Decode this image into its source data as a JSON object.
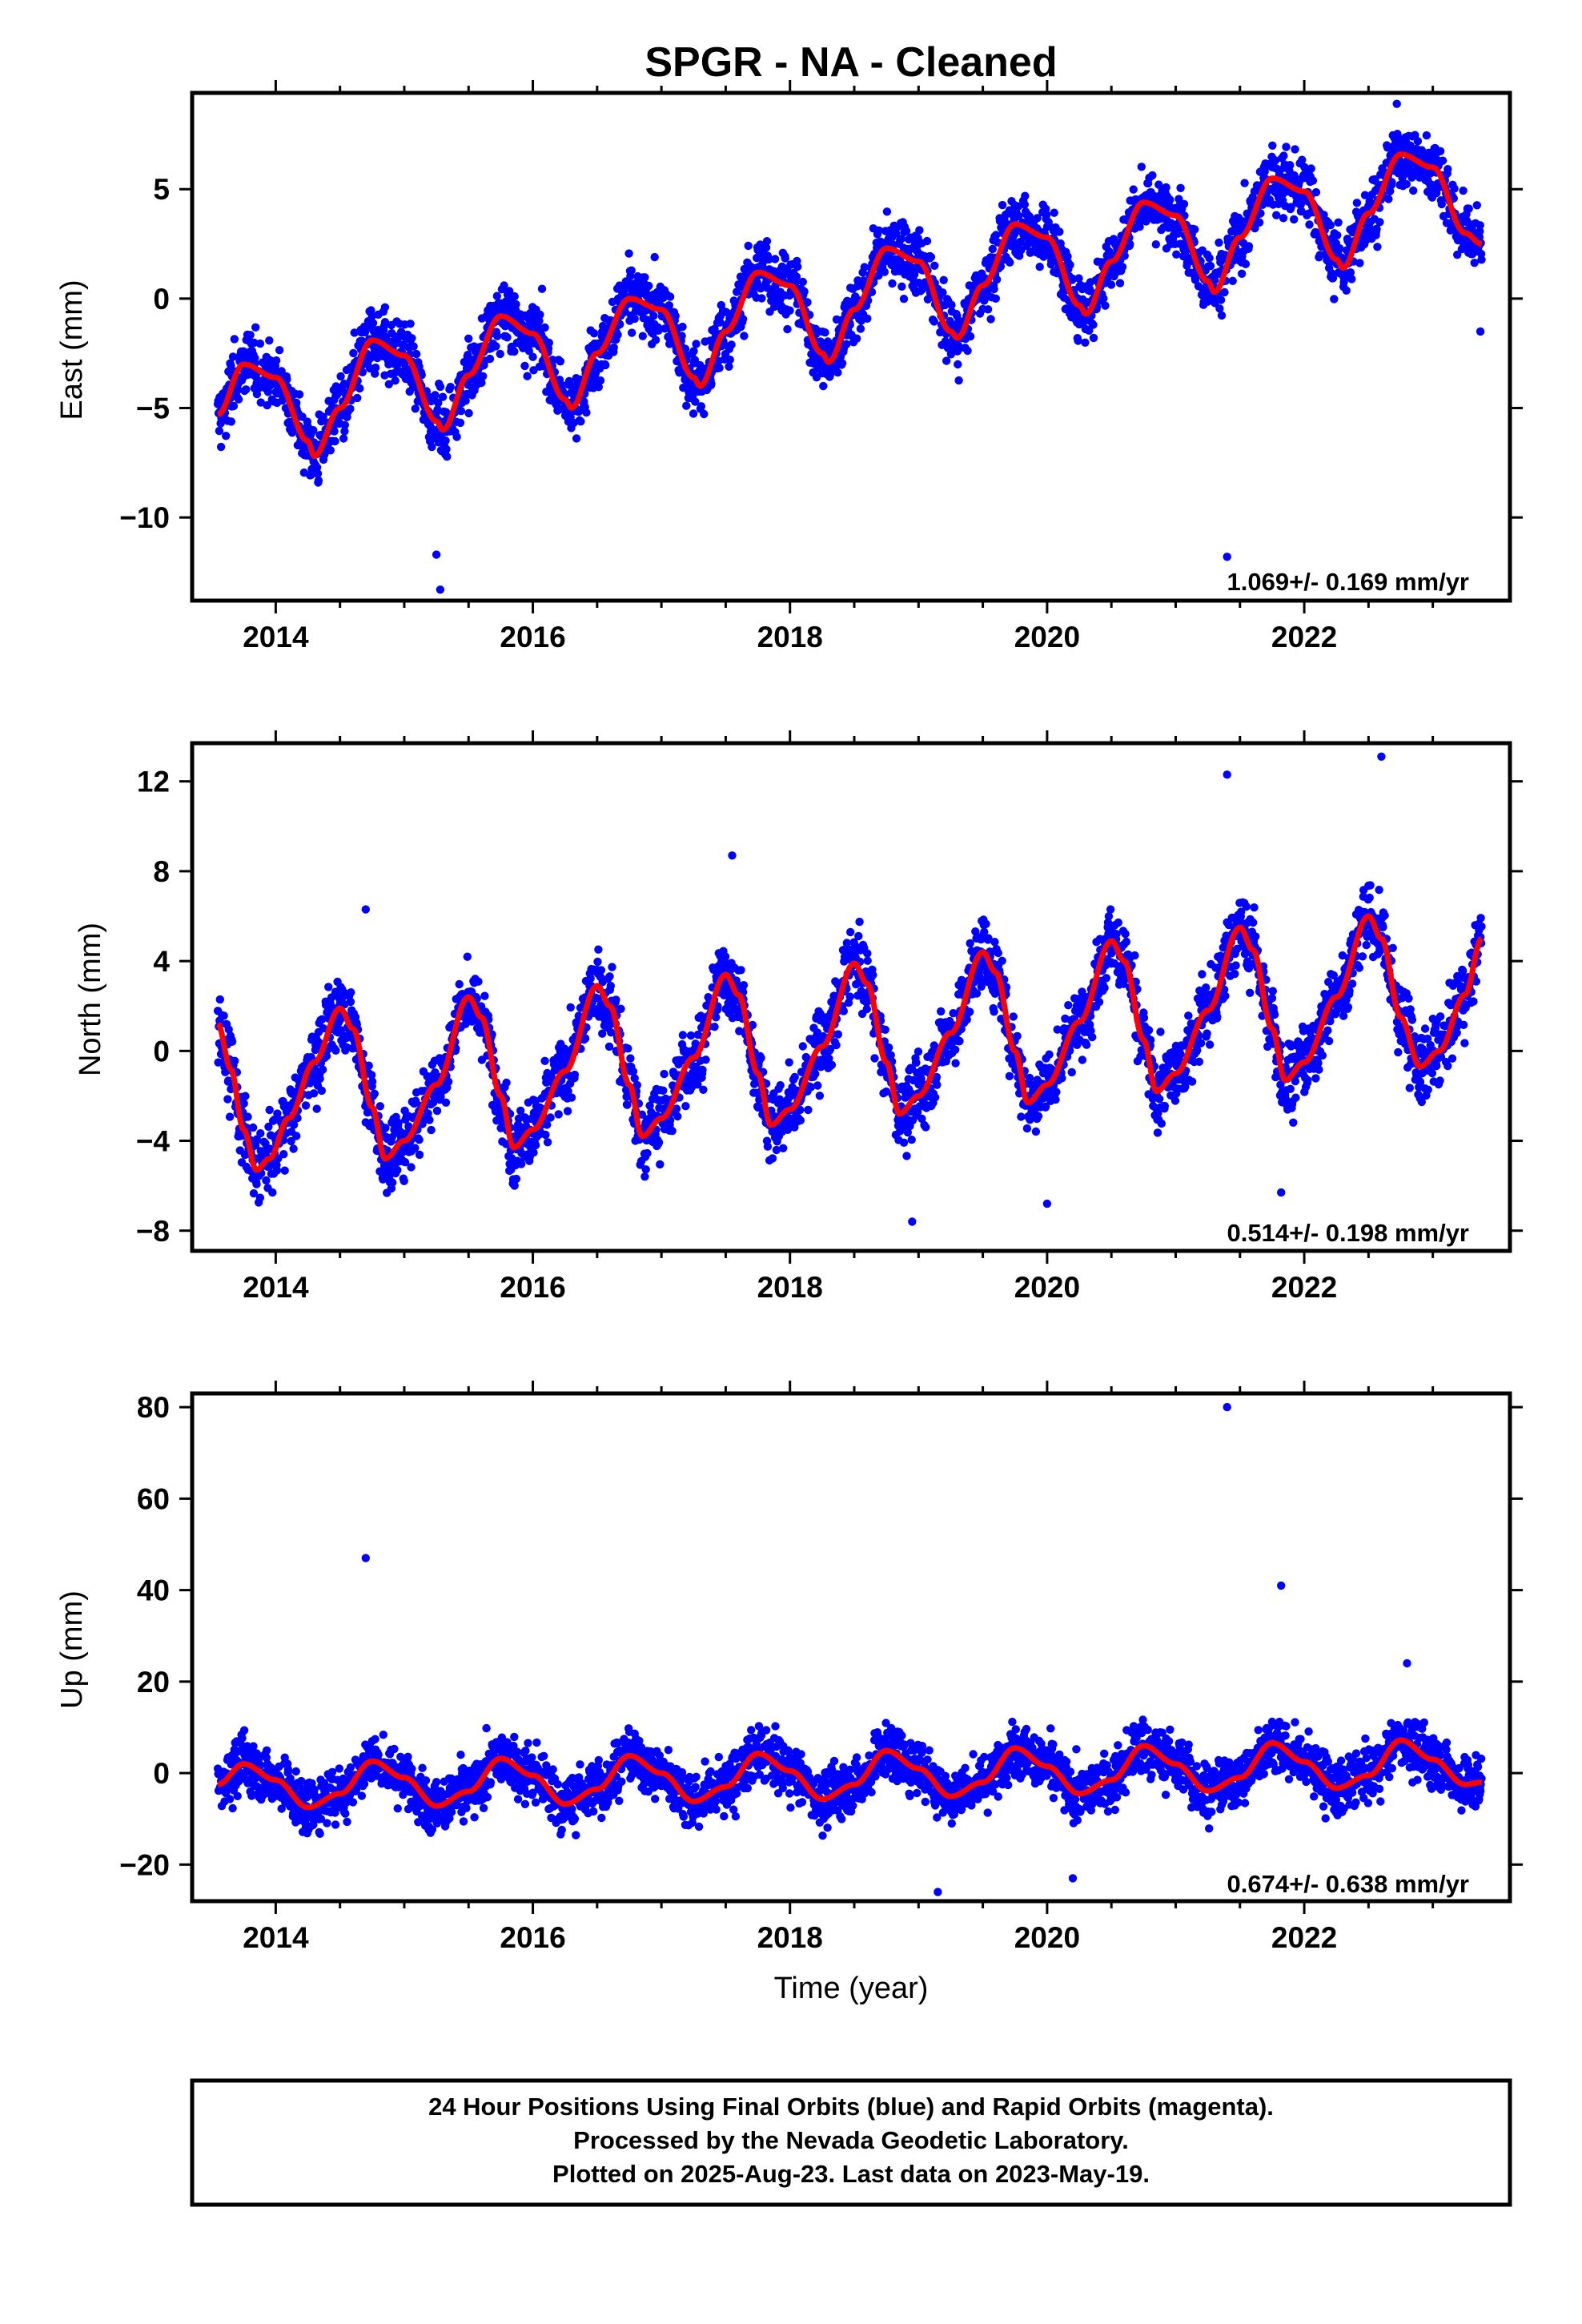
{
  "title": "SPGR  - NA - Cleaned",
  "xlabel": "Time (year)",
  "caption": [
    "24 Hour Positions Using Final Orbits (blue) and Rapid Orbits (magenta).",
    "Processed by the Nevada Geodetic Laboratory.",
    "Plotted on 2025-Aug-23. Last data on 2023-May-19."
  ],
  "colors": {
    "points": "#0000ff",
    "model": "#ff0000",
    "frame": "#000000"
  },
  "chart_data": [
    {
      "type": "scatter",
      "component": "east",
      "ylabel": "East (mm)",
      "rate_label": "1.069+/- 0.169 mm/yr",
      "xlim": [
        2013.35,
        2023.6
      ],
      "ylim": [
        -13.8,
        9.4
      ],
      "xticks": [
        2014,
        2016,
        2018,
        2020,
        2022
      ],
      "yticks": [
        -10,
        -5,
        0,
        5
      ],
      "series": [
        {
          "values": [
            [
              2013.55,
              -5.3
            ],
            [
              2013.75,
              -3.0
            ],
            [
              2014.0,
              -3.6
            ],
            [
              2014.25,
              -6.5
            ],
            [
              2014.3,
              -7.2
            ],
            [
              2014.5,
              -5.0
            ],
            [
              2014.75,
              -1.9
            ],
            [
              2015.0,
              -2.6
            ],
            [
              2015.25,
              -5.6
            ],
            [
              2015.3,
              -6.0
            ],
            [
              2015.5,
              -3.5
            ],
            [
              2015.75,
              -0.8
            ],
            [
              2016.0,
              -1.6
            ],
            [
              2016.25,
              -4.6
            ],
            [
              2016.3,
              -5.0
            ],
            [
              2016.5,
              -2.5
            ],
            [
              2016.75,
              0.0
            ],
            [
              2017.0,
              -0.5
            ],
            [
              2017.25,
              -3.6
            ],
            [
              2017.3,
              -4.0
            ],
            [
              2017.5,
              -1.5
            ],
            [
              2017.75,
              1.2
            ],
            [
              2018.0,
              0.6
            ],
            [
              2018.25,
              -2.5
            ],
            [
              2018.3,
              -2.9
            ],
            [
              2018.5,
              -0.5
            ],
            [
              2018.75,
              2.3
            ],
            [
              2019.0,
              1.7
            ],
            [
              2019.25,
              -1.5
            ],
            [
              2019.3,
              -1.8
            ],
            [
              2019.5,
              0.6
            ],
            [
              2019.75,
              3.4
            ],
            [
              2020.0,
              2.8
            ],
            [
              2020.25,
              -0.3
            ],
            [
              2020.3,
              -0.7
            ],
            [
              2020.5,
              1.7
            ],
            [
              2020.75,
              4.4
            ],
            [
              2021.0,
              3.8
            ],
            [
              2021.25,
              0.8
            ],
            [
              2021.3,
              0.3
            ],
            [
              2021.5,
              2.8
            ],
            [
              2021.75,
              5.5
            ],
            [
              2022.0,
              4.9
            ],
            [
              2022.25,
              1.8
            ],
            [
              2022.3,
              1.4
            ],
            [
              2022.5,
              3.9
            ],
            [
              2022.75,
              6.6
            ],
            [
              2023.0,
              6.0
            ],
            [
              2023.25,
              3.0
            ],
            [
              2023.38,
              2.5
            ]
          ]
        }
      ],
      "outliers": [
        [
          2015.28,
          -13.3
        ],
        [
          2015.25,
          -11.7
        ],
        [
          2021.4,
          -11.8
        ],
        [
          2022.72,
          8.9
        ],
        [
          2014.85,
          -0.4
        ],
        [
          2023.37,
          -1.5
        ]
      ]
    },
    {
      "type": "scatter",
      "component": "north",
      "ylabel": "North (mm)",
      "rate_label": "0.514+/- 0.198 mm/yr",
      "xlim": [
        2013.35,
        2023.6
      ],
      "ylim": [
        -8.9,
        13.7
      ],
      "xticks": [
        2014,
        2016,
        2018,
        2020,
        2022
      ],
      "yticks": [
        -8,
        -4,
        0,
        4,
        8,
        12
      ],
      "series": [
        {
          "values": [
            [
              2013.55,
              1.2
            ],
            [
              2013.65,
              -0.8
            ],
            [
              2013.75,
              -3.5
            ],
            [
              2013.85,
              -5.3
            ],
            [
              2013.95,
              -4.8
            ],
            [
              2014.1,
              -3.0
            ],
            [
              2014.3,
              -0.5
            ],
            [
              2014.5,
              1.9
            ],
            [
              2014.6,
              1.0
            ],
            [
              2014.75,
              -2.5
            ],
            [
              2014.85,
              -4.8
            ],
            [
              2015.0,
              -4.0
            ],
            [
              2015.25,
              -1.5
            ],
            [
              2015.5,
              2.4
            ],
            [
              2015.6,
              1.5
            ],
            [
              2015.75,
              -2.0
            ],
            [
              2015.85,
              -4.3
            ],
            [
              2016.0,
              -3.5
            ],
            [
              2016.25,
              -0.9
            ],
            [
              2016.5,
              2.9
            ],
            [
              2016.6,
              2.0
            ],
            [
              2016.75,
              -1.5
            ],
            [
              2016.85,
              -3.8
            ],
            [
              2017.0,
              -3.0
            ],
            [
              2017.25,
              -0.3
            ],
            [
              2017.5,
              3.4
            ],
            [
              2017.6,
              2.5
            ],
            [
              2017.75,
              -1.0
            ],
            [
              2017.85,
              -3.3
            ],
            [
              2018.0,
              -2.6
            ],
            [
              2018.25,
              0.2
            ],
            [
              2018.5,
              3.9
            ],
            [
              2018.6,
              3.0
            ],
            [
              2018.75,
              -0.5
            ],
            [
              2018.85,
              -2.8
            ],
            [
              2019.0,
              -2.0
            ],
            [
              2019.25,
              0.8
            ],
            [
              2019.5,
              4.4
            ],
            [
              2019.6,
              3.5
            ],
            [
              2019.75,
              0.0
            ],
            [
              2019.85,
              -2.3
            ],
            [
              2020.0,
              -1.5
            ],
            [
              2020.25,
              1.3
            ],
            [
              2020.5,
              4.9
            ],
            [
              2020.6,
              4.0
            ],
            [
              2020.75,
              0.5
            ],
            [
              2020.85,
              -1.8
            ],
            [
              2021.0,
              -1.0
            ],
            [
              2021.25,
              1.8
            ],
            [
              2021.5,
              5.5
            ],
            [
              2021.6,
              4.5
            ],
            [
              2021.75,
              1.0
            ],
            [
              2021.85,
              -1.3
            ],
            [
              2022.0,
              -0.5
            ],
            [
              2022.25,
              2.4
            ],
            [
              2022.5,
              6.0
            ],
            [
              2022.6,
              5.0
            ],
            [
              2022.75,
              1.5
            ],
            [
              2022.9,
              -0.7
            ],
            [
              2023.05,
              0.0
            ],
            [
              2023.25,
              2.5
            ],
            [
              2023.38,
              5.0
            ]
          ]
        }
      ],
      "outliers": [
        [
          2022.6,
          13.1
        ],
        [
          2021.4,
          12.3
        ],
        [
          2017.55,
          8.7
        ],
        [
          2014.7,
          6.3
        ],
        [
          2021.82,
          -6.3
        ],
        [
          2018.95,
          -7.6
        ],
        [
          2020.0,
          -6.8
        ]
      ]
    },
    {
      "type": "scatter",
      "component": "up",
      "ylabel": "Up (mm)",
      "rate_label": "0.674+/- 0.638 mm/yr",
      "xlim": [
        2013.35,
        2023.6
      ],
      "ylim": [
        -28,
        83
      ],
      "xticks": [
        2014,
        2016,
        2018,
        2020,
        2022
      ],
      "yticks": [
        -20,
        0,
        20,
        40,
        60,
        80
      ],
      "series": [
        {
          "values": [
            [
              2013.55,
              -2.5
            ],
            [
              2013.75,
              2.0
            ],
            [
              2014.0,
              -1.5
            ],
            [
              2014.25,
              -7.5
            ],
            [
              2014.5,
              -4.5
            ],
            [
              2014.75,
              2.6
            ],
            [
              2015.0,
              -1.0
            ],
            [
              2015.25,
              -7.2
            ],
            [
              2015.5,
              -4.0
            ],
            [
              2015.75,
              3.2
            ],
            [
              2016.0,
              -0.5
            ],
            [
              2016.25,
              -6.8
            ],
            [
              2016.5,
              -3.5
            ],
            [
              2016.75,
              3.8
            ],
            [
              2017.0,
              0.0
            ],
            [
              2017.25,
              -6.2
            ],
            [
              2017.5,
              -3.0
            ],
            [
              2017.75,
              4.3
            ],
            [
              2018.0,
              0.5
            ],
            [
              2018.25,
              -5.7
            ],
            [
              2018.5,
              -2.5
            ],
            [
              2018.75,
              4.9
            ],
            [
              2019.0,
              1.0
            ],
            [
              2019.25,
              -5.1
            ],
            [
              2019.5,
              -2.0
            ],
            [
              2019.75,
              5.5
            ],
            [
              2020.0,
              1.5
            ],
            [
              2020.25,
              -4.5
            ],
            [
              2020.5,
              -1.5
            ],
            [
              2020.75,
              6.0
            ],
            [
              2021.0,
              2.0
            ],
            [
              2021.25,
              -3.9
            ],
            [
              2021.5,
              -1.0
            ],
            [
              2021.75,
              6.6
            ],
            [
              2022.0,
              2.5
            ],
            [
              2022.25,
              -3.3
            ],
            [
              2022.5,
              -0.5
            ],
            [
              2022.75,
              7.2
            ],
            [
              2023.0,
              3.0
            ],
            [
              2023.25,
              -2.5
            ],
            [
              2023.38,
              -2.0
            ]
          ]
        }
      ],
      "outliers": [
        [
          2021.4,
          80.0
        ],
        [
          2014.7,
          47.0
        ],
        [
          2021.82,
          41.0
        ],
        [
          2019.15,
          -26.0
        ],
        [
          2022.8,
          24.0
        ],
        [
          2020.2,
          -23.0
        ]
      ]
    }
  ]
}
